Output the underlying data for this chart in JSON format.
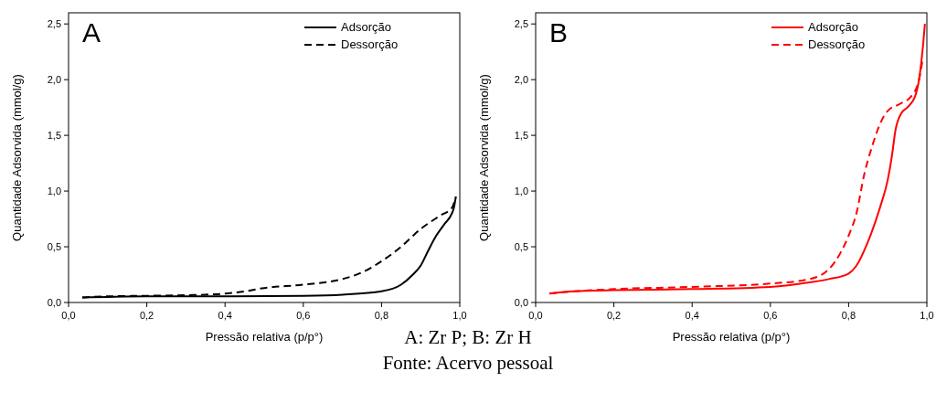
{
  "chart_data": [
    {
      "type": "line",
      "title": "A",
      "xlabel": "Pressão relativa (p/p°)",
      "ylabel": "Quantidade Adsorvida (mmol/g)",
      "xlim": [
        0,
        1
      ],
      "ylim": [
        0,
        2.6
      ],
      "xticks": [
        {
          "value": 0,
          "label": "0,0"
        },
        {
          "value": 0.2,
          "label": "0,2"
        },
        {
          "value": 0.4,
          "label": "0,4"
        },
        {
          "value": 0.6,
          "label": "0,6"
        },
        {
          "value": 0.8,
          "label": "0,8"
        },
        {
          "value": 1,
          "label": "1,0"
        }
      ],
      "yticks": [
        {
          "value": 0,
          "label": "0,0"
        },
        {
          "value": 0.5,
          "label": "0,5"
        },
        {
          "value": 1,
          "label": "1,0"
        },
        {
          "value": 1.5,
          "label": "1,5"
        },
        {
          "value": 2,
          "label": "2,0"
        },
        {
          "value": 2.5,
          "label": "2,5"
        }
      ],
      "legend": "top right",
      "grid": false,
      "marker": "none",
      "series": [
        {
          "name": "Adsorção",
          "color": "#000000",
          "line_style": "solid",
          "x": [
            0.035,
            0.1,
            0.2,
            0.4,
            0.6,
            0.7,
            0.8,
            0.85,
            0.88,
            0.9,
            0.92,
            0.94,
            0.96,
            0.98,
            0.985,
            0.99
          ],
          "values": [
            0.045,
            0.05,
            0.055,
            0.055,
            0.06,
            0.07,
            0.1,
            0.16,
            0.25,
            0.33,
            0.47,
            0.6,
            0.7,
            0.8,
            0.85,
            0.95
          ]
        },
        {
          "name": "Dessorção",
          "color": "#000000",
          "line_style": "dashed",
          "x": [
            0.035,
            0.1,
            0.2,
            0.3,
            0.4,
            0.45,
            0.5,
            0.6,
            0.7,
            0.75,
            0.8,
            0.85,
            0.9,
            0.95,
            0.98,
            0.99
          ],
          "values": [
            0.045,
            0.055,
            0.06,
            0.065,
            0.08,
            0.1,
            0.13,
            0.16,
            0.21,
            0.27,
            0.37,
            0.5,
            0.66,
            0.78,
            0.85,
            0.95
          ]
        }
      ],
      "annotations": [
        "A: Zr P; B: Zr H",
        "Fonte: Acervo pessoal"
      ]
    },
    {
      "type": "line",
      "title": "B",
      "xlabel": "Pressão relativa (p/p°)",
      "ylabel": "Quantidade Adsorvida (mmol/g)",
      "xlim": [
        0,
        1
      ],
      "ylim": [
        0,
        2.6
      ],
      "xticks": [
        {
          "value": 0,
          "label": "0,0"
        },
        {
          "value": 0.2,
          "label": "0,2"
        },
        {
          "value": 0.4,
          "label": "0,4"
        },
        {
          "value": 0.6,
          "label": "0,6"
        },
        {
          "value": 0.8,
          "label": "0,8"
        },
        {
          "value": 1,
          "label": "1,0"
        }
      ],
      "yticks": [
        {
          "value": 0,
          "label": "0,0"
        },
        {
          "value": 0.5,
          "label": "0,5"
        },
        {
          "value": 1,
          "label": "1,0"
        },
        {
          "value": 1.5,
          "label": "1,5"
        },
        {
          "value": 2,
          "label": "2,0"
        },
        {
          "value": 2.5,
          "label": "2,5"
        }
      ],
      "legend": "top right",
      "grid": false,
      "marker": "none",
      "series": [
        {
          "name": "Adsorção",
          "color": "#ff0000",
          "line_style": "solid",
          "x": [
            0.035,
            0.1,
            0.2,
            0.4,
            0.6,
            0.7,
            0.75,
            0.8,
            0.82,
            0.85,
            0.88,
            0.9,
            0.91,
            0.92,
            0.935,
            0.95,
            0.97,
            0.98,
            0.99,
            0.995
          ],
          "values": [
            0.08,
            0.1,
            0.11,
            0.12,
            0.14,
            0.18,
            0.21,
            0.26,
            0.33,
            0.55,
            0.85,
            1.1,
            1.3,
            1.55,
            1.7,
            1.75,
            1.85,
            2.0,
            2.3,
            2.5
          ]
        },
        {
          "name": "Dessorção",
          "color": "#ff0000",
          "line_style": "dashed",
          "x": [
            0.035,
            0.1,
            0.2,
            0.4,
            0.6,
            0.7,
            0.75,
            0.78,
            0.8,
            0.82,
            0.84,
            0.86,
            0.88,
            0.9,
            0.93,
            0.96,
            0.98,
            0.99
          ],
          "values": [
            0.08,
            0.1,
            0.12,
            0.14,
            0.17,
            0.21,
            0.3,
            0.45,
            0.6,
            0.8,
            1.15,
            1.4,
            1.6,
            1.72,
            1.78,
            1.85,
            2.0,
            2.2
          ]
        }
      ]
    }
  ]
}
